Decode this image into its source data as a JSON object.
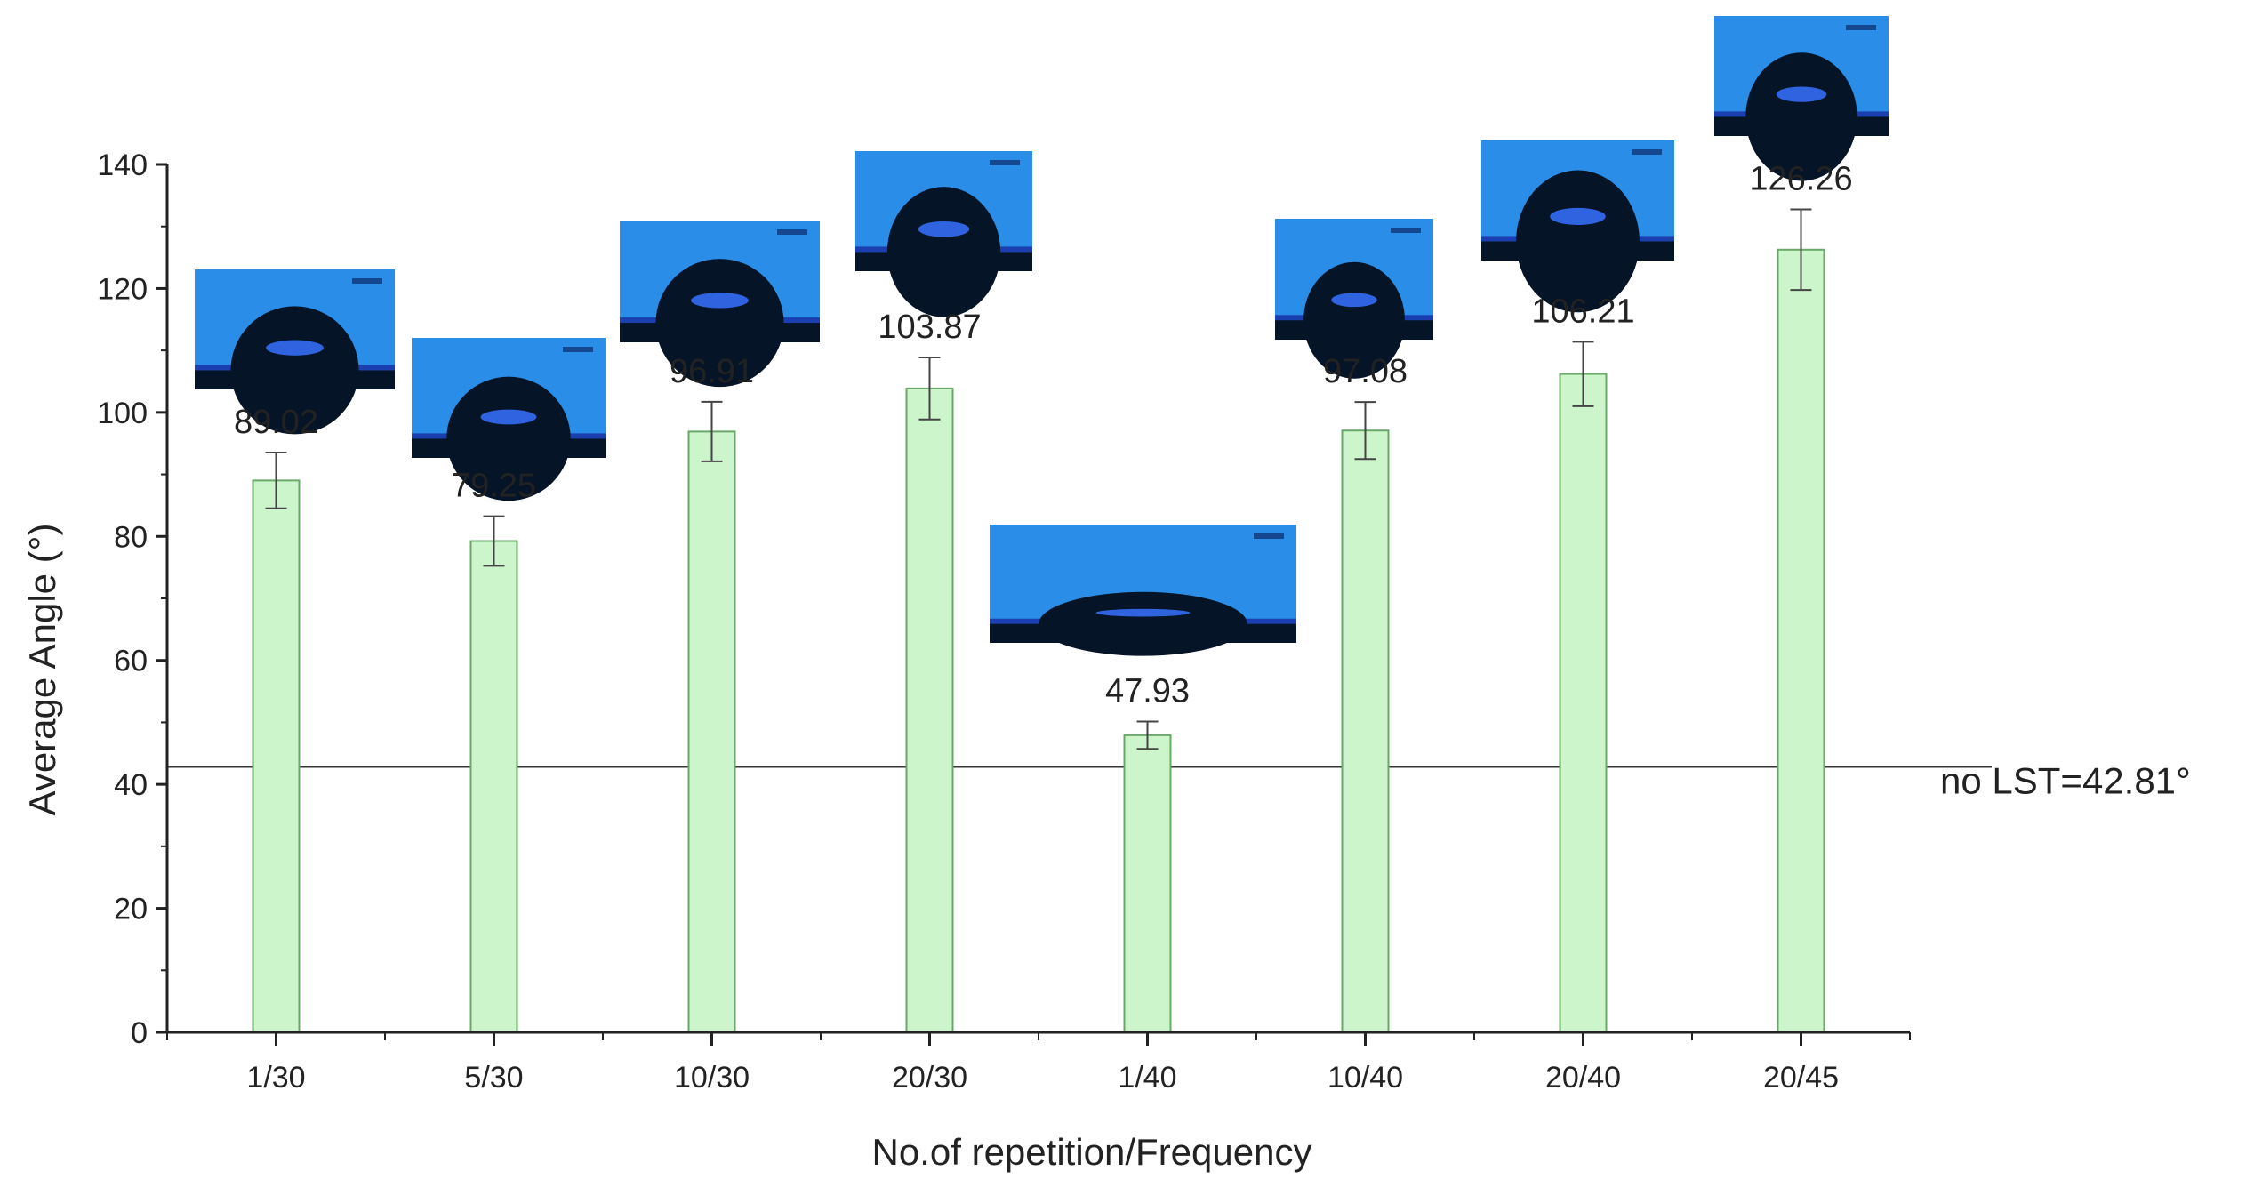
{
  "chart_data": {
    "type": "bar",
    "categories": [
      "1/30",
      "5/30",
      "10/30",
      "20/30",
      "1/40",
      "10/40",
      "20/40",
      "20/45"
    ],
    "values": [
      89.02,
      79.25,
      96.91,
      103.87,
      47.93,
      97.08,
      106.21,
      126.26
    ],
    "value_labels": [
      "89.02",
      "79.25",
      "96.91",
      "103.87",
      "47.93",
      "97.08",
      "106.21",
      "126.26"
    ],
    "errors": [
      4.5,
      4.0,
      4.8,
      5.0,
      2.2,
      4.6,
      5.2,
      6.5
    ],
    "xlabel": "No.of repetition/Frequency",
    "ylabel": "Average Angle (°)",
    "ylim": [
      0,
      140
    ],
    "yticks": [
      0,
      20,
      40,
      60,
      80,
      100,
      120,
      140
    ],
    "grid": false,
    "reference_line": {
      "value": 42.81,
      "label": "no LST=42.81°"
    },
    "colors": {
      "bar_fill": "#ccf5cc",
      "bar_stroke": "#6aa86a",
      "axis": "#222222",
      "photo_sky": "#2a8ee8",
      "photo_dark": "#061428"
    }
  }
}
